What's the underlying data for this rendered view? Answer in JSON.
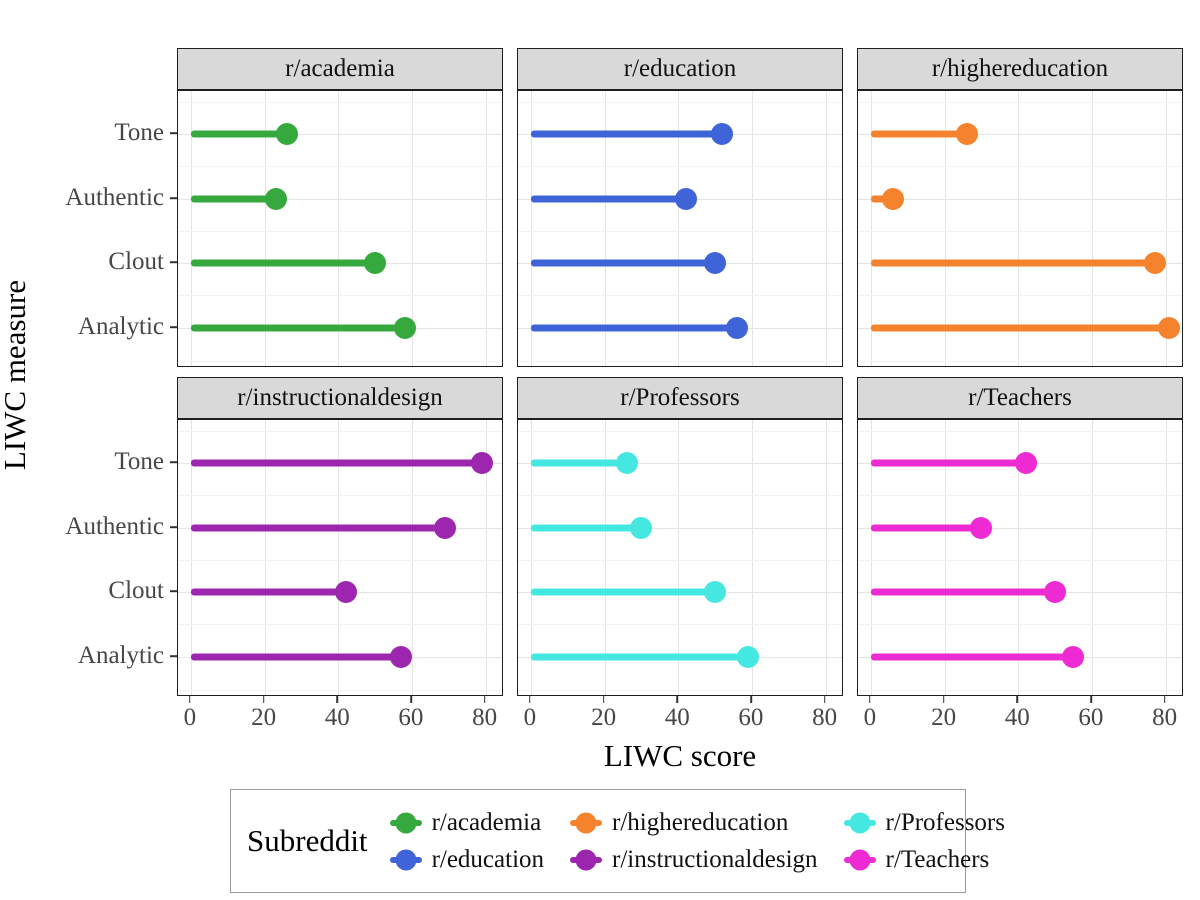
{
  "axes": {
    "x_title": "LIWC score",
    "y_title": "LIWC measure",
    "x_ticks": [
      0,
      20,
      40,
      60,
      80
    ],
    "y_categories_top_to_bottom": [
      "Tone",
      "Authentic",
      "Clout",
      "Analytic"
    ]
  },
  "chart_data": {
    "type": "lollipop-bar",
    "categories": [
      "Tone",
      "Authentic",
      "Clout",
      "Analytic"
    ],
    "xlabel": "LIWC score",
    "ylabel": "LIWC measure",
    "xlim": [
      0,
      80
    ],
    "grid": "major-on",
    "facets": [
      {
        "title": "r/academia",
        "color": "#35a83e",
        "values": [
          26,
          23,
          50,
          58
        ]
      },
      {
        "title": "r/education",
        "color": "#3e64d8",
        "values": [
          52,
          42,
          50,
          56
        ]
      },
      {
        "title": "r/highereducation",
        "color": "#f5822c",
        "values": [
          26,
          6,
          77,
          81
        ]
      },
      {
        "title": "r/instructionaldesign",
        "color": "#9c27ae",
        "values": [
          79,
          69,
          42,
          57
        ]
      },
      {
        "title": "r/Professors",
        "color": "#45e8e1",
        "values": [
          26,
          30,
          50,
          59
        ]
      },
      {
        "title": "r/Teachers",
        "color": "#ee2bd2",
        "values": [
          42,
          30,
          50,
          55
        ]
      }
    ]
  },
  "legend": {
    "title": "Subreddit",
    "position": "bottom",
    "columns": [
      [
        {
          "label": "r/academia",
          "color": "#35a83e"
        },
        {
          "label": "r/education",
          "color": "#3e64d8"
        }
      ],
      [
        {
          "label": "r/highereducation",
          "color": "#f5822c"
        },
        {
          "label": "r/instructionaldesign",
          "color": "#9c27ae"
        }
      ],
      [
        {
          "label": "r/Professors",
          "color": "#45e8e1"
        },
        {
          "label": "r/Teachers",
          "color": "#ee2bd2"
        }
      ]
    ]
  }
}
